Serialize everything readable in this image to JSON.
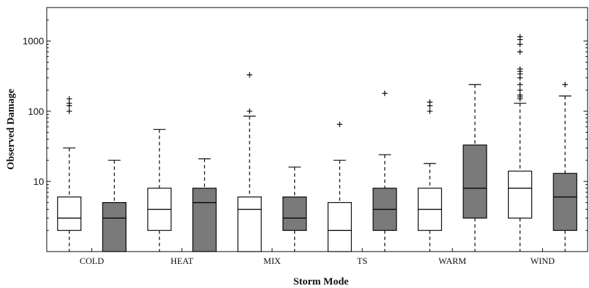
{
  "chart_data": {
    "type": "box",
    "title": "",
    "xlabel": "Storm Mode",
    "ylabel": "Observed Damage",
    "yscale": "log",
    "ylim": [
      1,
      3000
    ],
    "yticks": [
      10,
      100,
      1000
    ],
    "ytick_labels": [
      "10",
      "100",
      "1000"
    ],
    "categories": [
      "COLD",
      "HEAT",
      "MIX",
      "TS",
      "WARM",
      "WIND"
    ],
    "colors": {
      "series_a": "#ffffff",
      "series_b": "#7a7a7a",
      "stroke": "#000000"
    },
    "series": [
      {
        "fill": "white",
        "boxes": [
          {
            "category": "COLD",
            "whislo": 1,
            "q1": 2,
            "med": 3,
            "q3": 6,
            "whishi": 30,
            "fliers": [
              100,
              120,
              130,
              150
            ]
          },
          {
            "category": "HEAT",
            "whislo": 1,
            "q1": 2,
            "med": 4,
            "q3": 8,
            "whishi": 55,
            "fliers": []
          },
          {
            "category": "MIX",
            "whislo": 1,
            "q1": 1,
            "med": 4,
            "q3": 6,
            "whishi": 85,
            "fliers": [
              100,
              330
            ]
          },
          {
            "category": "TS",
            "whislo": 1,
            "q1": 1,
            "med": 2,
            "q3": 5,
            "whishi": 20,
            "fliers": [
              65
            ]
          },
          {
            "category": "WARM",
            "whislo": 1,
            "q1": 2,
            "med": 4,
            "q3": 8,
            "whishi": 18,
            "fliers": [
              100,
              120,
              135
            ]
          },
          {
            "category": "WIND",
            "whislo": 1,
            "q1": 3,
            "med": 8,
            "q3": 14,
            "whishi": 130,
            "fliers": [
              150,
              160,
              170,
              200,
              240,
              300,
              340,
              370,
              400,
              700,
              900,
              1050,
              1150
            ]
          }
        ]
      },
      {
        "fill": "gray",
        "boxes": [
          {
            "category": "COLD",
            "whislo": 1,
            "q1": 1,
            "med": 3,
            "q3": 5,
            "whishi": 20,
            "fliers": []
          },
          {
            "category": "HEAT",
            "whislo": 1,
            "q1": 1,
            "med": 5,
            "q3": 8,
            "whishi": 21,
            "fliers": []
          },
          {
            "category": "MIX",
            "whislo": 1,
            "q1": 2,
            "med": 3,
            "q3": 6,
            "whishi": 16,
            "fliers": []
          },
          {
            "category": "TS",
            "whislo": 1,
            "q1": 2,
            "med": 4,
            "q3": 8,
            "whishi": 24,
            "fliers": [
              180
            ]
          },
          {
            "category": "WARM",
            "whislo": 1,
            "q1": 3,
            "med": 8,
            "q3": 33,
            "whishi": 240,
            "fliers": []
          },
          {
            "category": "WIND",
            "whislo": 1,
            "q1": 2,
            "med": 6,
            "q3": 13,
            "whishi": 165,
            "fliers": [
              240
            ]
          }
        ]
      }
    ]
  }
}
